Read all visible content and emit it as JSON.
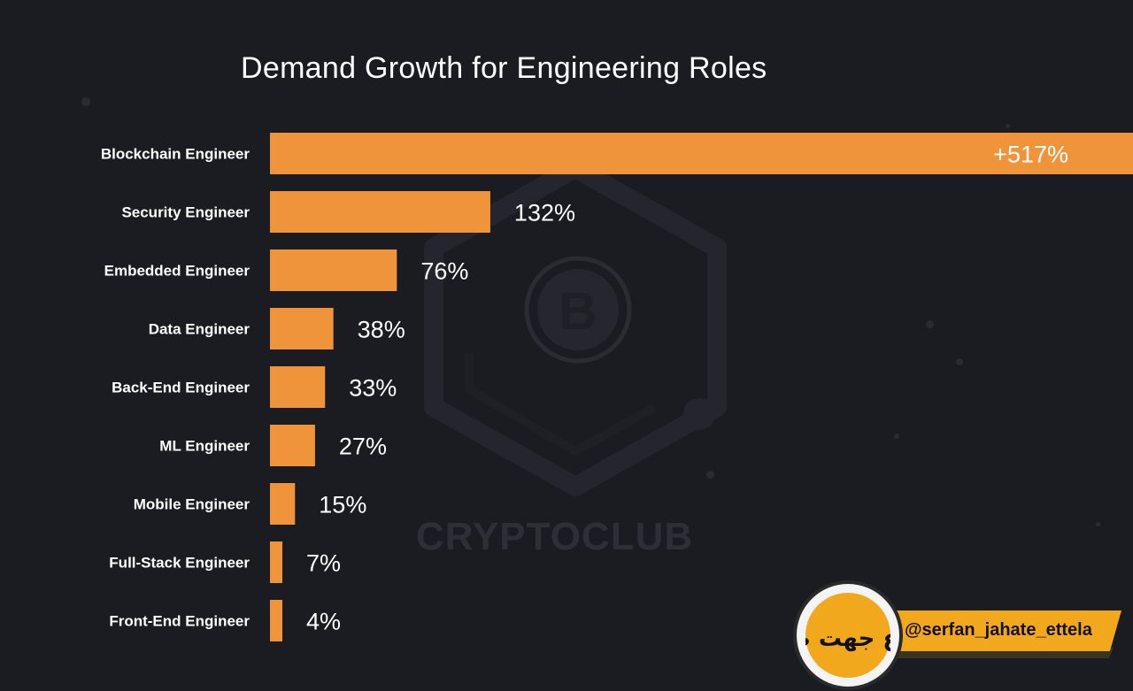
{
  "chart_data": {
    "type": "bar",
    "orientation": "horizontal",
    "title": "Demand Growth for Engineering Roles",
    "categories": [
      "Blockchain Engineer",
      "Security Engineer",
      "Embedded Engineer",
      "Data Engineer",
      "Back-End Engineer",
      "ML Engineer",
      "Mobile Engineer",
      "Full-Stack Engineer",
      "Front-End Engineer"
    ],
    "values": [
      517,
      132,
      76,
      38,
      33,
      27,
      15,
      7,
      4
    ],
    "value_labels": [
      "+517%",
      "132%",
      "76%",
      "38%",
      "33%",
      "27%",
      "15%",
      "7%",
      "4%"
    ],
    "unit": "%",
    "grid": false,
    "legend": "none"
  },
  "watermark": {
    "text": "CRYPTOCLUB",
    "icon": "bitcoin-icon"
  },
  "badge": {
    "handle": "@serfan_jahate_ettela",
    "logo_text": "اطلاع جهت صرفا"
  },
  "colors": {
    "background": "#1b1c22",
    "bar_start": "#dd4046",
    "bar_end": "#f0943c",
    "text": "#ffffff",
    "badge_accent": "#f2a81d"
  }
}
